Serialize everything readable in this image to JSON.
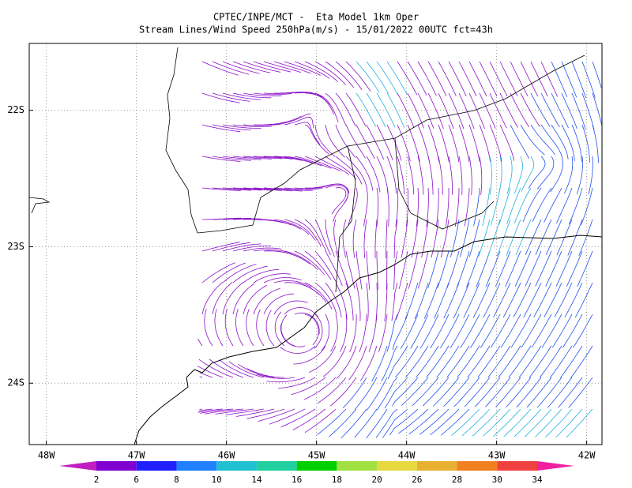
{
  "title": "CPTEC/INPE/MCT -  Eta Model 1km Oper",
  "subtitle": "Stream Lines/Wind Speed 250hPa(m/s) - 15/01/2022 00UTC fct=43h",
  "map": {
    "xlim": [
      -48.19,
      -41.83
    ],
    "ylim": [
      -24.45,
      -21.51
    ],
    "xticks": [
      {
        "value": -48,
        "label": "48W"
      },
      {
        "value": -47,
        "label": "47W"
      },
      {
        "value": -46,
        "label": "46W"
      },
      {
        "value": -45,
        "label": "45W"
      },
      {
        "value": -44,
        "label": "44W"
      },
      {
        "value": -43,
        "label": "43W"
      },
      {
        "value": -42,
        "label": "42W"
      }
    ],
    "yticks": [
      {
        "value": -22,
        "label": "22S"
      },
      {
        "value": -23,
        "label": "23S"
      },
      {
        "value": -24,
        "label": "24S"
      }
    ]
  },
  "colorbar": {
    "levels": [
      2,
      6,
      8,
      10,
      14,
      16,
      18,
      20,
      26,
      28,
      30,
      34
    ],
    "colors": [
      "#c020c0",
      "#8000d0",
      "#2020ff",
      "#2080ff",
      "#20c0d0",
      "#20d0a0",
      "#00d000",
      "#a0e040",
      "#e8d840",
      "#e8b030",
      "#f08020",
      "#f04040",
      "#f020a0"
    ]
  }
}
